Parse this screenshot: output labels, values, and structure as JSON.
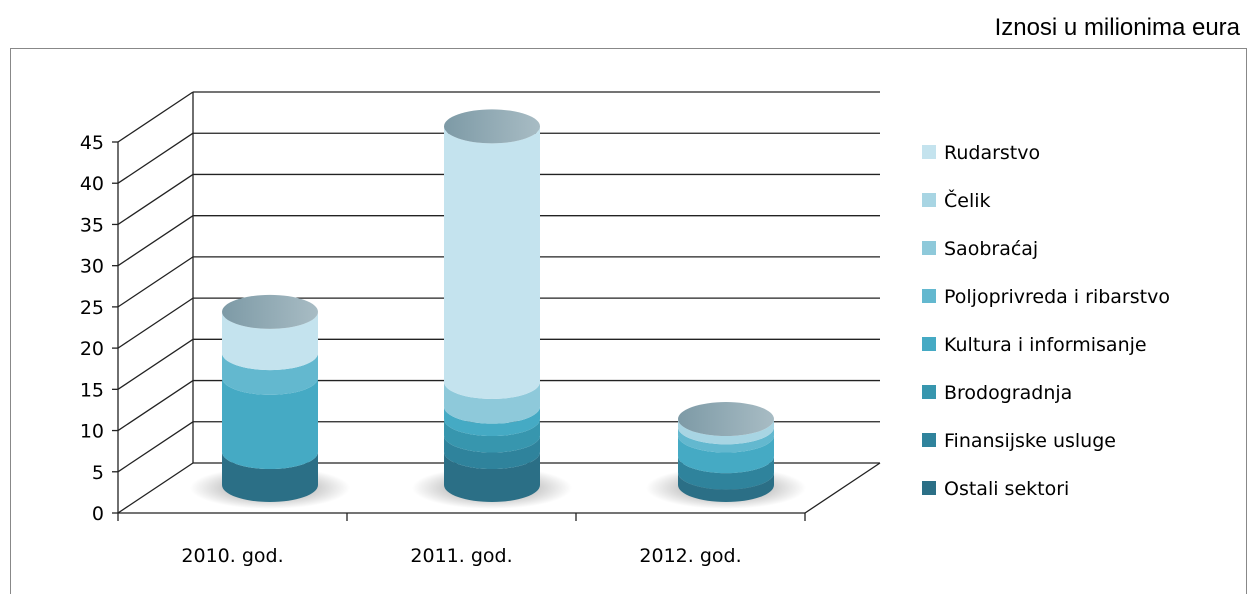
{
  "note": "Iznosi u milionima eura",
  "chart_data": {
    "type": "bar",
    "style": "3d-cylinder-stacked",
    "categories": [
      "2010. god.",
      "2011. god.",
      "2012. god."
    ],
    "ylim": [
      0,
      45
    ],
    "yticks": [
      0,
      5,
      10,
      15,
      20,
      25,
      30,
      35,
      40,
      45
    ],
    "grid": true,
    "legend_position": "right",
    "series": [
      {
        "name": "Ostali sektori",
        "values": [
          4,
          4,
          1.5
        ],
        "color": "#2b6f86"
      },
      {
        "name": "Finansijske usluge",
        "values": [
          0,
          2,
          2
        ],
        "color": "#2f839c"
      },
      {
        "name": "Brodogradnja",
        "values": [
          0,
          2,
          0
        ],
        "color": "#3796ae"
      },
      {
        "name": "Kultura i informisanje",
        "values": [
          9,
          1.5,
          2.5
        ],
        "color": "#45aac4"
      },
      {
        "name": "Poljoprivreda i ribarstvo",
        "values": [
          3,
          0,
          1
        ],
        "color": "#63b8cf"
      },
      {
        "name": "Saobraćaj",
        "values": [
          0,
          3,
          0
        ],
        "color": "#8ec9da"
      },
      {
        "name": "Čelik",
        "values": [
          0,
          0,
          1
        ],
        "color": "#a8d5e3"
      },
      {
        "name": "Rudarstvo",
        "values": [
          5,
          31,
          0
        ],
        "color": "#c4e3ee"
      }
    ]
  }
}
